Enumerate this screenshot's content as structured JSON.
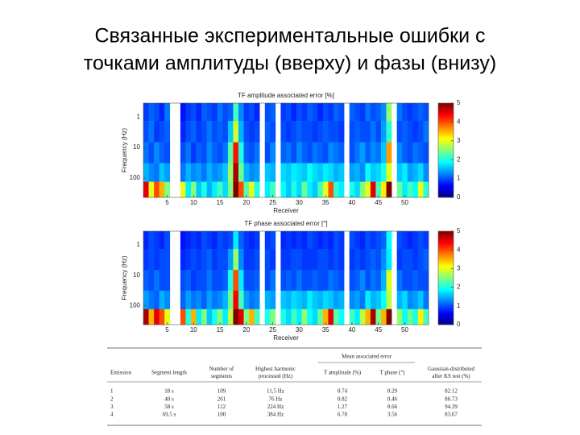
{
  "slide": {
    "title_lines": [
      "Связанные экспериментальные ошибки с",
      "точками амплитуды (вверху) и фазы (внизу)"
    ]
  },
  "chart_data": [
    {
      "type": "heatmap",
      "title": "TF amplitude associated error [%]",
      "x_label": "Receiver",
      "y_label": "Frequency (Hz)",
      "x": [
        1,
        2,
        3,
        4,
        5,
        6,
        7,
        8,
        9,
        10,
        11,
        12,
        13,
        14,
        15,
        16,
        17,
        18,
        19,
        20,
        21,
        22,
        23,
        24,
        25,
        26,
        27,
        28,
        29,
        30,
        31,
        32,
        33,
        34,
        35,
        36,
        37,
        38,
        39,
        40,
        41,
        42,
        43,
        44,
        45,
        46,
        47,
        48,
        49,
        50,
        51,
        52,
        53,
        54
      ],
      "y": [
        0.6,
        3,
        15,
        70,
        250
      ],
      "xlim": [
        0.5,
        54.5
      ],
      "xticks": [
        5,
        10,
        15,
        20,
        25,
        30,
        35,
        40,
        45,
        50
      ],
      "ylim": [
        0.35,
        430
      ],
      "y_scale": "log",
      "y_inverted": true,
      "yticks": [
        1,
        10,
        100
      ],
      "zlim": [
        0,
        5
      ],
      "zticks": [
        0,
        1,
        2,
        3,
        4,
        5
      ],
      "colormap": "jet",
      "values": [
        [
          0.9,
          1.1,
          1,
          0.8,
          1.2,
          null,
          null,
          0.7,
          0.9,
          1,
          0.8,
          1.1,
          1,
          0.9,
          1.2,
          1,
          1.1,
          2.2,
          1.3,
          0.9,
          1,
          0.8,
          null,
          1,
          1.1,
          null,
          0.9,
          1,
          0.8,
          1,
          0.9,
          1.1,
          1,
          0.8,
          1,
          0.9,
          1.1,
          1,
          null,
          1.1,
          1,
          0.9,
          1.2,
          1,
          1.1,
          1.3,
          2.6,
          null,
          1.2,
          1,
          0.9,
          1,
          1.1,
          1
        ],
        [
          1,
          1.2,
          0.9,
          1,
          1.1,
          null,
          null,
          0.8,
          1,
          1.1,
          0.9,
          1,
          1.2,
          1,
          1.1,
          1,
          1.6,
          2.9,
          1.5,
          1,
          0.9,
          1,
          null,
          1.1,
          1,
          null,
          1,
          0.9,
          1,
          1.1,
          1,
          1,
          0.9,
          1,
          1.1,
          1,
          1,
          0.9,
          null,
          1,
          1.1,
          1,
          1,
          1.2,
          1,
          1.4,
          2.1,
          null,
          1,
          1.1,
          1,
          0.9,
          1,
          1.2
        ],
        [
          1.2,
          1,
          1.3,
          1.1,
          1,
          null,
          null,
          1,
          1.2,
          0.9,
          1.1,
          1,
          1.3,
          1.1,
          1,
          1.2,
          2.3,
          4.3,
          2,
          1.1,
          1,
          1.2,
          null,
          1,
          1.3,
          null,
          1.1,
          1.2,
          1,
          1.3,
          1.1,
          1,
          1.2,
          1.1,
          1,
          1.3,
          1.2,
          1.1,
          null,
          1,
          1.2,
          1.4,
          1.1,
          1.3,
          1.2,
          1.6,
          3.6,
          null,
          1.3,
          1.1,
          1,
          1.2,
          1.1,
          1
        ],
        [
          1.5,
          1.3,
          1.2,
          1.6,
          1.4,
          null,
          null,
          1.2,
          1.5,
          1.3,
          1.4,
          1.2,
          1.5,
          1.3,
          1.4,
          1.6,
          2.6,
          4.8,
          2.4,
          1.5,
          1.3,
          1.4,
          null,
          1.6,
          1.5,
          null,
          1.7,
          1.6,
          1.8,
          1.7,
          1.6,
          1.9,
          1.7,
          1.6,
          1.8,
          1.7,
          1.5,
          1.6,
          null,
          1.4,
          1.5,
          1.3,
          1.9,
          1.6,
          1.7,
          2,
          3,
          null,
          1.6,
          1.8,
          1.4,
          1.5,
          1.7,
          1.3
        ],
        [
          4.5,
          3,
          4,
          3.5,
          2.5,
          null,
          null,
          3,
          1.8,
          2.5,
          1.6,
          2,
          1.5,
          1.8,
          2.2,
          1.7,
          2.5,
          5,
          4,
          2.3,
          3,
          2,
          null,
          1.8,
          2.2,
          null,
          1.9,
          1.6,
          2,
          1.7,
          2.4,
          1.8,
          1.6,
          2.2,
          3,
          4,
          2.1,
          1.8,
          null,
          2,
          1.7,
          2.5,
          3,
          4.5,
          2.2,
          3.2,
          5,
          null,
          2.4,
          1.8,
          2.2,
          1.9,
          3,
          2.1
        ]
      ]
    },
    {
      "type": "heatmap",
      "title": "TF phase associated error [°]",
      "x_label": "Receiver",
      "y_label": "Frequency (Hz)",
      "x": [
        1,
        2,
        3,
        4,
        5,
        6,
        7,
        8,
        9,
        10,
        11,
        12,
        13,
        14,
        15,
        16,
        17,
        18,
        19,
        20,
        21,
        22,
        23,
        24,
        25,
        26,
        27,
        28,
        29,
        30,
        31,
        32,
        33,
        34,
        35,
        36,
        37,
        38,
        39,
        40,
        41,
        42,
        43,
        44,
        45,
        46,
        47,
        48,
        49,
        50,
        51,
        52,
        53,
        54
      ],
      "y": [
        0.6,
        3,
        15,
        70,
        250
      ],
      "xlim": [
        0.5,
        54.5
      ],
      "xticks": [
        5,
        10,
        15,
        20,
        25,
        30,
        35,
        40,
        45,
        50
      ],
      "ylim": [
        0.35,
        430
      ],
      "y_scale": "log",
      "y_inverted": true,
      "yticks": [
        1,
        10,
        100
      ],
      "zlim": [
        0,
        5
      ],
      "zticks": [
        0,
        1,
        2,
        3,
        4,
        5
      ],
      "colormap": "jet",
      "values": [
        [
          0.8,
          1,
          0.9,
          0.8,
          1,
          null,
          null,
          0.7,
          0.8,
          0.9,
          0.8,
          1,
          0.9,
          0.8,
          1,
          0.9,
          1,
          1.8,
          1.1,
          0.9,
          0.8,
          0.9,
          null,
          0.9,
          1,
          null,
          0.8,
          0.9,
          0.8,
          0.9,
          0.8,
          1,
          0.9,
          0.8,
          0.9,
          0.8,
          1,
          0.9,
          null,
          1,
          0.9,
          0.8,
          1,
          0.9,
          1,
          1.1,
          1.9,
          null,
          1,
          0.9,
          0.8,
          0.9,
          1,
          0.9
        ],
        [
          0.9,
          1,
          0.9,
          1,
          1,
          null,
          null,
          0.8,
          0.9,
          1,
          0.9,
          1,
          1.1,
          0.9,
          1,
          1,
          1.4,
          2.6,
          1.3,
          0.9,
          0.9,
          1,
          null,
          1,
          0.9,
          null,
          0.9,
          0.9,
          1,
          1,
          0.9,
          0.9,
          0.9,
          1,
          1,
          0.9,
          1,
          0.9,
          null,
          0.9,
          1,
          0.9,
          1,
          1.1,
          1,
          1.3,
          1.8,
          null,
          0.9,
          1,
          1,
          0.9,
          1,
          1.1
        ],
        [
          1.1,
          1,
          1.2,
          1,
          1,
          null,
          null,
          1,
          1.1,
          0.9,
          1,
          1,
          1.2,
          1,
          1,
          1.1,
          2,
          4,
          1.8,
          1,
          1,
          1.1,
          null,
          1,
          1.2,
          null,
          1,
          1.1,
          1,
          1.2,
          1,
          1,
          1.1,
          1,
          1,
          1.2,
          1.1,
          1,
          null,
          1,
          1.1,
          1.3,
          1,
          1.2,
          1.1,
          1.5,
          3,
          null,
          1.2,
          1,
          1,
          1.1,
          1,
          1
        ],
        [
          1.4,
          1.2,
          1.1,
          1.5,
          1.3,
          null,
          null,
          1.1,
          1.4,
          1.2,
          1.3,
          1.1,
          1.4,
          1.2,
          1.3,
          1.5,
          2.4,
          4.4,
          2.2,
          1.4,
          1.2,
          1.3,
          null,
          1.5,
          1.4,
          null,
          1.6,
          1.5,
          1.7,
          1.6,
          1.5,
          1.8,
          1.6,
          1.5,
          1.7,
          1.6,
          1.4,
          1.5,
          null,
          1.3,
          1.4,
          1.2,
          1.8,
          1.5,
          1.6,
          1.9,
          2.8,
          null,
          1.5,
          1.7,
          1.3,
          1.4,
          1.6,
          1.2
        ],
        [
          4.8,
          3.5,
          4.5,
          4,
          3,
          null,
          null,
          4,
          2,
          3.5,
          1.8,
          2.5,
          1.6,
          2,
          2.5,
          1.8,
          2.8,
          5,
          4.5,
          2.5,
          3.5,
          2.2,
          null,
          2,
          2.5,
          null,
          2,
          1.7,
          2.2,
          1.8,
          2.6,
          1.9,
          1.7,
          2.4,
          3.5,
          4.5,
          2.3,
          1.9,
          null,
          2.2,
          1.8,
          2.8,
          3.5,
          4.8,
          2.4,
          3.5,
          5,
          null,
          2.6,
          1.9,
          2.4,
          2,
          3.2,
          2.2
        ]
      ]
    }
  ],
  "table": {
    "header_group": "Mean associated error",
    "columns": [
      [
        "Emission"
      ],
      [
        "Segment length"
      ],
      [
        "Number of",
        "segments"
      ],
      [
        "Highest harmonic",
        "processed (Hz)"
      ],
      [
        "T amplitude (%)"
      ],
      [
        "T phase (°)"
      ],
      [
        "Gaussian-distributed",
        "after KS test (%)"
      ]
    ],
    "rows": [
      [
        "1",
        "18 s",
        "109",
        "11,5 Hz",
        "0.74",
        "0.29",
        "82.12"
      ],
      [
        "2",
        "40 s",
        "261",
        "76 Hz",
        "0.82",
        "0.46",
        "86.73"
      ],
      [
        "3",
        "58 s",
        "112",
        "224 Hz",
        "1.27",
        "0.66",
        "94.39"
      ],
      [
        "4",
        "69.5 s",
        "100",
        "384 Hz",
        "6.70",
        "3.56",
        "83.67"
      ]
    ]
  }
}
